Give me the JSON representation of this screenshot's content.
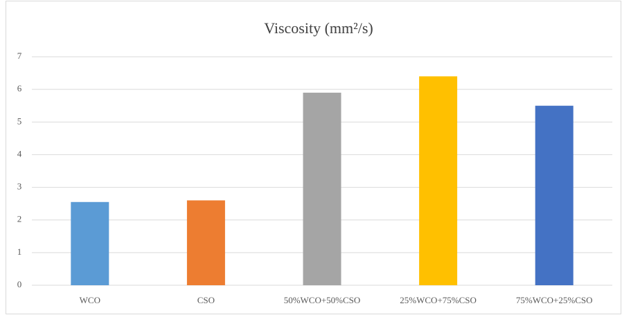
{
  "chart_data": {
    "type": "bar",
    "title": "Viscosity (mm²/s)",
    "categories": [
      "WCO",
      "CSO",
      "50%WCO+50%CSO",
      "25%WCO+75%CSO",
      "75%WCO+25%CSO"
    ],
    "values": [
      2.55,
      2.6,
      5.9,
      6.4,
      5.5
    ],
    "colors": [
      "#5b9bd5",
      "#ed7d31",
      "#a5a5a5",
      "#ffc000",
      "#4472c4"
    ],
    "ylim": [
      0,
      7
    ],
    "yticks": [
      0,
      1,
      2,
      3,
      4,
      5,
      6,
      7
    ],
    "grid": true
  }
}
